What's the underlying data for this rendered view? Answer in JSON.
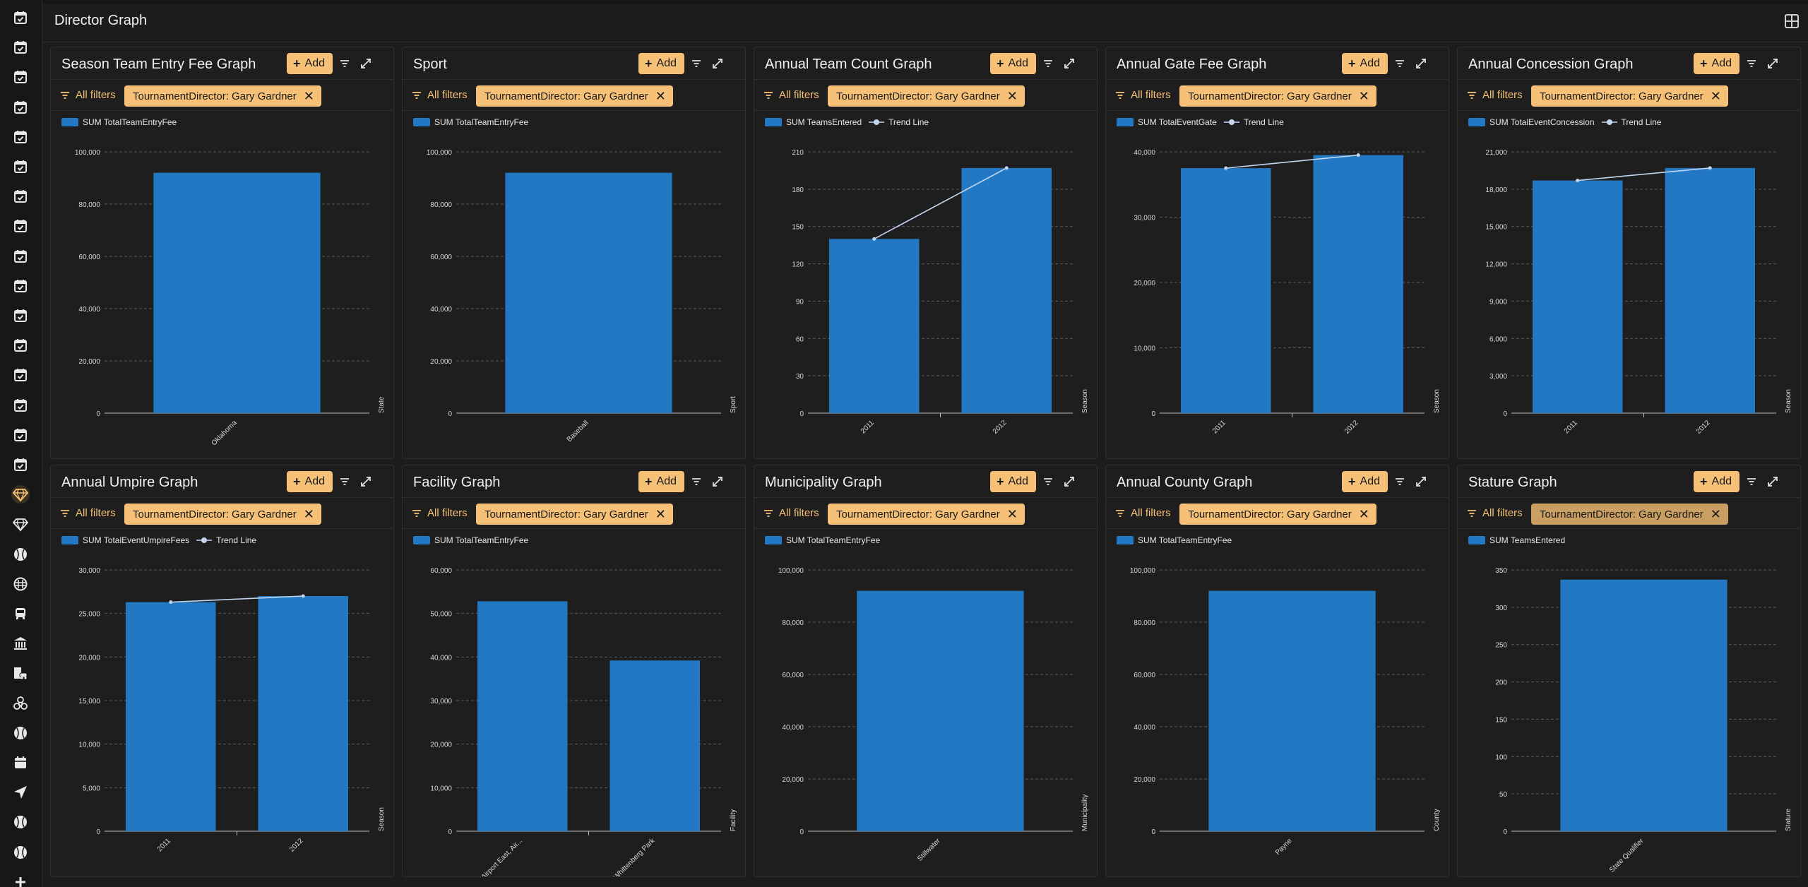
{
  "page": {
    "title": "Director Graph"
  },
  "sidebar": {
    "items": [
      {
        "icon": "calendar-check-icon"
      },
      {
        "icon": "calendar-check-icon"
      },
      {
        "icon": "calendar-check-icon"
      },
      {
        "icon": "calendar-check-icon"
      },
      {
        "icon": "calendar-check-icon"
      },
      {
        "icon": "calendar-check-icon"
      },
      {
        "icon": "calendar-check-icon"
      },
      {
        "icon": "calendar-check-icon"
      },
      {
        "icon": "calendar-check-icon"
      },
      {
        "icon": "calendar-check-icon"
      },
      {
        "icon": "calendar-check-icon"
      },
      {
        "icon": "calendar-check-icon"
      },
      {
        "icon": "calendar-check-icon"
      },
      {
        "icon": "calendar-check-icon"
      },
      {
        "icon": "calendar-check-icon"
      },
      {
        "icon": "calendar-check-icon"
      },
      {
        "icon": "gem-icon",
        "active": true
      },
      {
        "icon": "gem-icon"
      },
      {
        "icon": "baseball-icon"
      },
      {
        "icon": "mask-icon"
      },
      {
        "icon": "bus-icon"
      },
      {
        "icon": "building-columns-icon"
      },
      {
        "icon": "building-car-icon"
      },
      {
        "icon": "biohazard-icon"
      },
      {
        "icon": "baseball-icon"
      },
      {
        "icon": "calendar-icon"
      },
      {
        "icon": "location-arrow-icon"
      },
      {
        "icon": "baseball-icon"
      },
      {
        "icon": "baseball-icon"
      },
      {
        "icon": "plus-icon"
      }
    ]
  },
  "common": {
    "add_label": "Add",
    "all_filters_label": "All filters",
    "filter_chip_label": "TournamentDirector: Gary Gardner",
    "trend_label": "Trend Line",
    "accent_color": "#f6c177",
    "bar_color": "#2278c2",
    "trend_color": "#c3d6ef"
  },
  "chart_data": [
    {
      "title": "Season Team Entry Fee Graph",
      "type": "bar",
      "series_name": "SUM TotalTeamEntryFee",
      "xlabel": "State",
      "categories": [
        "Oklahoma"
      ],
      "values": [
        92000
      ],
      "ylim": [
        0,
        100000
      ],
      "yticks": [
        0,
        20000,
        40000,
        60000,
        80000,
        100000
      ],
      "yticklabels": [
        "0",
        "20,000",
        "40,000",
        "60,000",
        "80,000",
        "100,000"
      ],
      "trend": null
    },
    {
      "title": "Sport",
      "type": "bar",
      "series_name": "SUM TotalTeamEntryFee",
      "xlabel": "Sport",
      "categories": [
        "Baseball"
      ],
      "values": [
        92000
      ],
      "ylim": [
        0,
        100000
      ],
      "yticks": [
        0,
        20000,
        40000,
        60000,
        80000,
        100000
      ],
      "yticklabels": [
        "0",
        "20,000",
        "40,000",
        "60,000",
        "80,000",
        "100,000"
      ],
      "trend": null
    },
    {
      "title": "Annual Team Count Graph",
      "type": "bar",
      "series_name": "SUM TeamsEntered",
      "xlabel": "Season",
      "categories": [
        "2011",
        "2012"
      ],
      "values": [
        140,
        197
      ],
      "ylim": [
        0,
        210
      ],
      "yticks": [
        0,
        30,
        60,
        90,
        120,
        150,
        180,
        210
      ],
      "yticklabels": [
        "0",
        "30",
        "60",
        "90",
        "120",
        "150",
        "180",
        "210"
      ],
      "trend": [
        140,
        197
      ]
    },
    {
      "title": "Annual Gate Fee Graph",
      "type": "bar",
      "series_name": "SUM TotalEventGate",
      "xlabel": "Season",
      "categories": [
        "2011",
        "2012"
      ],
      "values": [
        37500,
        39500
      ],
      "ylim": [
        0,
        40000
      ],
      "yticks": [
        0,
        10000,
        20000,
        30000,
        40000
      ],
      "yticklabels": [
        "0",
        "10,000",
        "20,000",
        "30,000",
        "40,000"
      ],
      "trend": [
        37500,
        39500
      ]
    },
    {
      "title": "Annual Concession Graph",
      "type": "bar",
      "series_name": "SUM TotalEventConcession",
      "xlabel": "Season",
      "categories": [
        "2011",
        "2012"
      ],
      "values": [
        18700,
        19700
      ],
      "ylim": [
        0,
        21000
      ],
      "yticks": [
        0,
        3000,
        6000,
        9000,
        12000,
        15000,
        18000,
        21000
      ],
      "yticklabels": [
        "0",
        "3,000",
        "6,000",
        "9,000",
        "12,000",
        "15,000",
        "18,000",
        "21,000"
      ],
      "trend": [
        18700,
        19700
      ]
    },
    {
      "title": "Annual Umpire Graph",
      "type": "bar",
      "series_name": "SUM TotalEventUmpireFees",
      "xlabel": "Season",
      "categories": [
        "2011",
        "2012"
      ],
      "values": [
        26300,
        27000
      ],
      "ylim": [
        0,
        30000
      ],
      "yticks": [
        0,
        5000,
        10000,
        15000,
        20000,
        25000,
        30000
      ],
      "yticklabels": [
        "0",
        "5,000",
        "10,000",
        "15,000",
        "20,000",
        "25,000",
        "30,000"
      ],
      "trend": [
        26300,
        27000
      ]
    },
    {
      "title": "Facility Graph",
      "type": "bar",
      "series_name": "SUM TotalTeamEntryFee",
      "xlabel": "Facility",
      "categories": [
        "Airport East, Air...",
        "Whittenberg Park"
      ],
      "values": [
        52800,
        39200
      ],
      "ylim": [
        0,
        60000
      ],
      "yticks": [
        0,
        10000,
        20000,
        30000,
        40000,
        50000,
        60000
      ],
      "yticklabels": [
        "0",
        "10,000",
        "20,000",
        "30,000",
        "40,000",
        "50,000",
        "60,000"
      ],
      "trend": null
    },
    {
      "title": "Municipality Graph",
      "type": "bar",
      "series_name": "SUM TotalTeamEntryFee",
      "xlabel": "Municipality",
      "categories": [
        "Stillwater"
      ],
      "values": [
        92000
      ],
      "ylim": [
        0,
        100000
      ],
      "yticks": [
        0,
        20000,
        40000,
        60000,
        80000,
        100000
      ],
      "yticklabels": [
        "0",
        "20,000",
        "40,000",
        "60,000",
        "80,000",
        "100,000"
      ],
      "trend": null
    },
    {
      "title": "Annual County Graph",
      "type": "bar",
      "series_name": "SUM TotalTeamEntryFee",
      "xlabel": "County",
      "categories": [
        "Payne"
      ],
      "values": [
        92000
      ],
      "ylim": [
        0,
        100000
      ],
      "yticks": [
        0,
        20000,
        40000,
        60000,
        80000,
        100000
      ],
      "yticklabels": [
        "0",
        "20,000",
        "40,000",
        "60,000",
        "80,000",
        "100,000"
      ],
      "trend": null
    },
    {
      "title": "Stature Graph",
      "type": "bar",
      "series_name": "SUM TeamsEntered",
      "xlabel": "Stature",
      "categories": [
        "State Qualifier"
      ],
      "values": [
        337
      ],
      "ylim": [
        0,
        350
      ],
      "yticks": [
        0,
        50,
        100,
        150,
        200,
        250,
        300,
        350
      ],
      "yticklabels": [
        "0",
        "50",
        "100",
        "150",
        "200",
        "250",
        "300",
        "350"
      ],
      "trend": null,
      "chip_muted": true
    }
  ]
}
